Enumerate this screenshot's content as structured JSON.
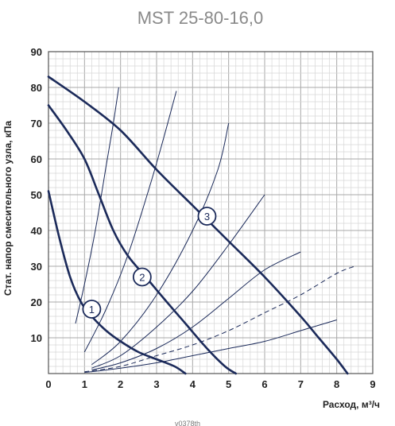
{
  "chart_data": {
    "type": "line",
    "title": "MST 25-80-16,0",
    "xlabel": "Расход, м³/ч",
    "ylabel": "Стат. напор смесительного узла, кПа",
    "xlim": [
      0,
      9
    ],
    "ylim": [
      0,
      90
    ],
    "x_ticks": [
      "0",
      "1",
      "2",
      "3",
      "4",
      "5",
      "6",
      "7",
      "8",
      "9"
    ],
    "y_ticks": [
      "10",
      "20",
      "30",
      "40",
      "50",
      "60",
      "70",
      "80",
      "90"
    ],
    "grid": true,
    "footer": "v0378th",
    "pump_curves": [
      {
        "label": "1",
        "color": "#1b2a5a",
        "points": [
          [
            0,
            51
          ],
          [
            0.3,
            38
          ],
          [
            0.6,
            27
          ],
          [
            0.9,
            20
          ],
          [
            1.2,
            16
          ],
          [
            1.6,
            12
          ],
          [
            2,
            9
          ],
          [
            2.5,
            6
          ],
          [
            3,
            4
          ],
          [
            3.5,
            2
          ],
          [
            3.8,
            0
          ]
        ]
      },
      {
        "label": "2",
        "color": "#1b2a5a",
        "points": [
          [
            0,
            75
          ],
          [
            0.5,
            68
          ],
          [
            1,
            60
          ],
          [
            1.4,
            50
          ],
          [
            1.8,
            40
          ],
          [
            2.2,
            33
          ],
          [
            2.7,
            27
          ],
          [
            3.2,
            21
          ],
          [
            3.8,
            14
          ],
          [
            4.4,
            7
          ],
          [
            4.9,
            2
          ],
          [
            5.2,
            0
          ]
        ]
      },
      {
        "label": "3",
        "color": "#1b2a5a",
        "points": [
          [
            0,
            83
          ],
          [
            1,
            76
          ],
          [
            2,
            68
          ],
          [
            3,
            57
          ],
          [
            4,
            47
          ],
          [
            5,
            37
          ],
          [
            6,
            27
          ],
          [
            7,
            16
          ],
          [
            7.5,
            10
          ],
          [
            8,
            4
          ],
          [
            8.3,
            0
          ]
        ]
      }
    ],
    "marker_positions": [
      {
        "label": "1",
        "x": 1.2,
        "y": 18
      },
      {
        "label": "2",
        "x": 2.6,
        "y": 27
      },
      {
        "label": "3",
        "x": 4.4,
        "y": 44
      }
    ],
    "system_curves": [
      {
        "dashed": false,
        "points": [
          [
            0.75,
            14
          ],
          [
            1,
            25
          ],
          [
            1.3,
            40
          ],
          [
            1.6,
            58
          ],
          [
            1.8,
            70
          ],
          [
            1.95,
            80
          ]
        ]
      },
      {
        "dashed": false,
        "points": [
          [
            1,
            6
          ],
          [
            1.6,
            18
          ],
          [
            2.2,
            33
          ],
          [
            2.8,
            52
          ],
          [
            3.2,
            66
          ],
          [
            3.55,
            79
          ]
        ]
      },
      {
        "dashed": false,
        "points": [
          [
            1.2,
            2.5
          ],
          [
            2,
            9
          ],
          [
            3,
            22
          ],
          [
            4,
            40
          ],
          [
            4.7,
            57
          ],
          [
            5,
            70
          ]
        ]
      },
      {
        "dashed": false,
        "points": [
          [
            1.2,
            1.5
          ],
          [
            2,
            5
          ],
          [
            3,
            13
          ],
          [
            4,
            23
          ],
          [
            5,
            36
          ],
          [
            6,
            50
          ]
        ]
      },
      {
        "dashed": false,
        "points": [
          [
            1.2,
            1
          ],
          [
            2,
            3
          ],
          [
            3,
            7
          ],
          [
            4,
            13
          ],
          [
            5,
            21
          ],
          [
            6,
            29
          ],
          [
            7,
            34
          ]
        ]
      },
      {
        "dashed": true,
        "points": [
          [
            1,
            0.5
          ],
          [
            2,
            2
          ],
          [
            3,
            5
          ],
          [
            4,
            8
          ],
          [
            5,
            12
          ],
          [
            6,
            17
          ],
          [
            7,
            22
          ],
          [
            8,
            28
          ],
          [
            8.5,
            30
          ]
        ]
      },
      {
        "dashed": false,
        "points": [
          [
            1,
            0.3
          ],
          [
            2,
            1.5
          ],
          [
            3,
            3
          ],
          [
            4,
            5
          ],
          [
            5,
            7
          ],
          [
            6,
            9
          ],
          [
            7,
            12
          ],
          [
            8,
            15
          ]
        ]
      }
    ]
  }
}
